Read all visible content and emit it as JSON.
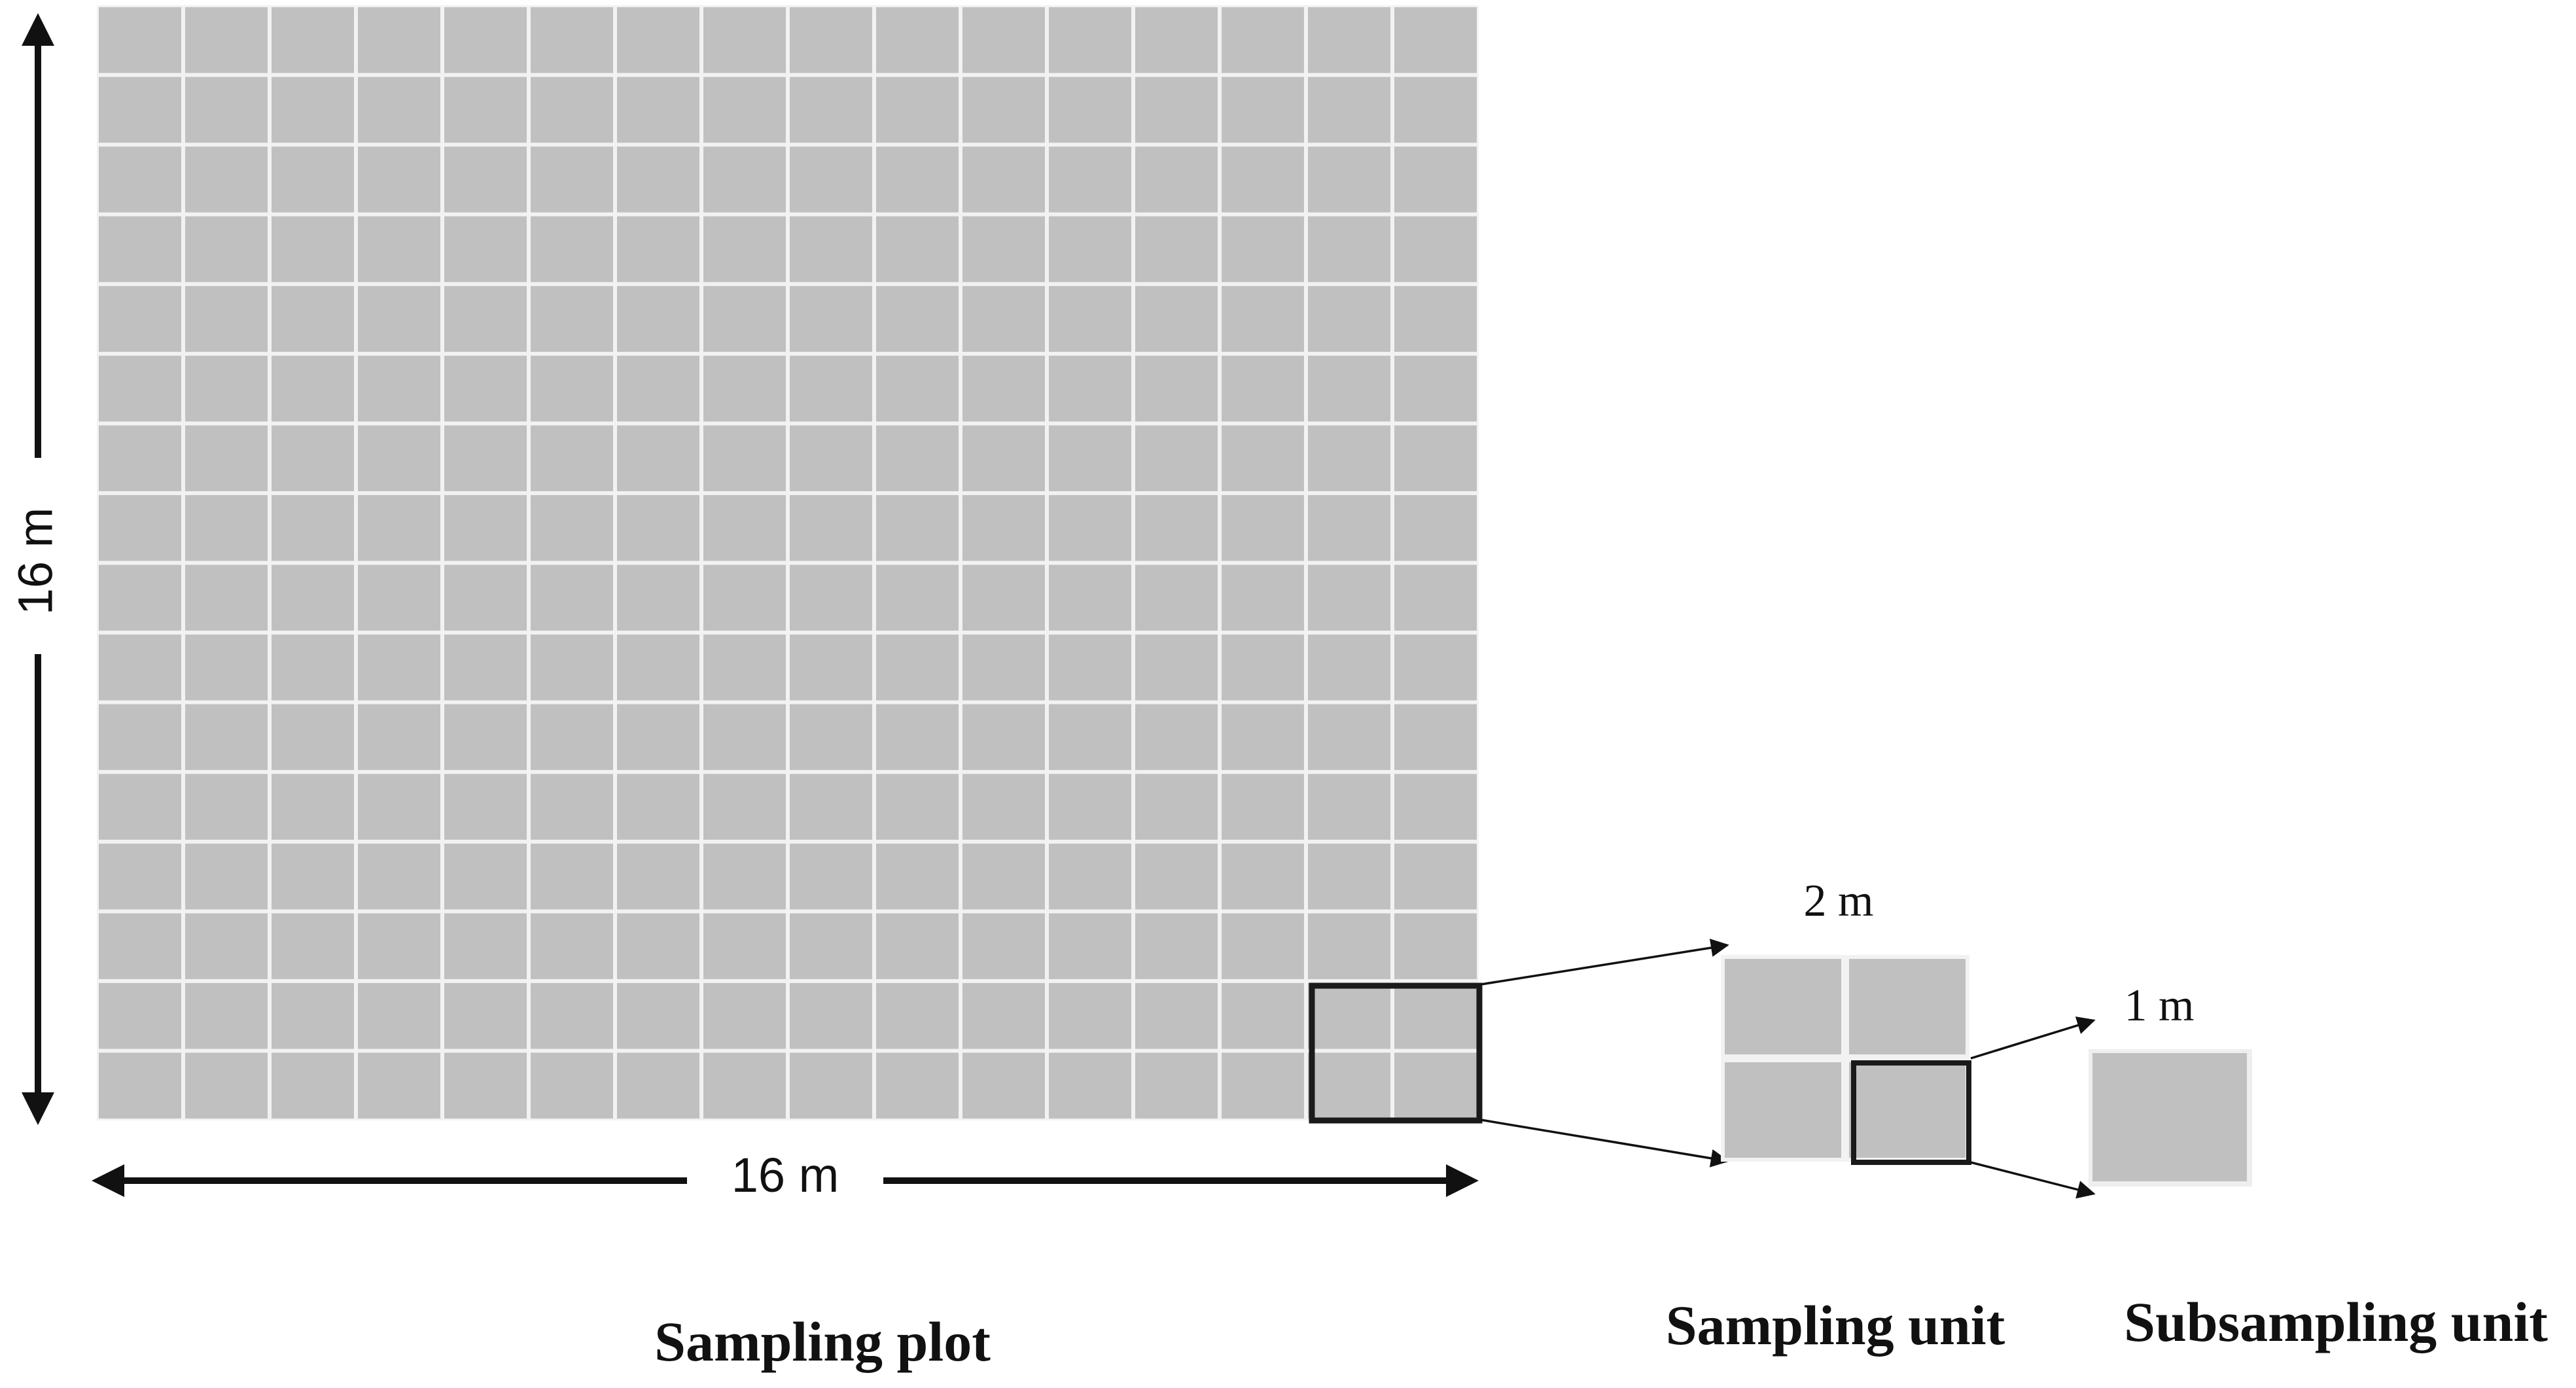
{
  "plot": {
    "width_label": "16 m",
    "height_label": "16 m",
    "caption": "Sampling plot",
    "grid_columns": 16,
    "grid_rows": 16
  },
  "unit": {
    "size_label": "2 m",
    "caption": "Sampling unit",
    "grid_columns": 2,
    "grid_rows": 2
  },
  "subunit": {
    "size_label": "1 m",
    "caption": "Subsampling unit"
  },
  "colors": {
    "cell": "#c0c0c0",
    "grid_line": "#f2f2f2",
    "outline": "#1a1a1a",
    "text": "#111111"
  }
}
